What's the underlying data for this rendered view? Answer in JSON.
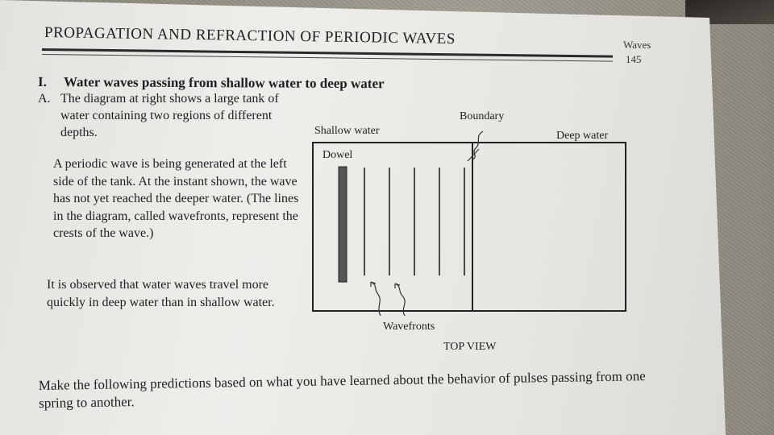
{
  "header": {
    "title": "PROPAGATION AND REFRACTION OF PERIODIC WAVES",
    "corner_label": "Waves",
    "page_number": "145"
  },
  "section": {
    "number": "I.",
    "title": "Water waves passing from shallow water to deep water"
  },
  "part_a": {
    "letter": "A.",
    "text": "The diagram at right shows a large tank of water containing two regions of different depths."
  },
  "paragraphs": {
    "wave_generated": "A periodic wave is being generated at the left side of the tank. At the instant shown, the wave has not yet reached the deeper water. (The lines in the diagram, called wavefronts, represent the crests of the wave.)",
    "observed": "It is observed that water waves travel more quickly in deep water than in shallow water."
  },
  "diagram": {
    "label_boundary": "Boundary",
    "label_shallow": "Shallow water",
    "label_deep": "Deep water",
    "label_dowel": "Dowel",
    "label_wavefronts": "Wavefronts",
    "caption": "TOP VIEW",
    "wavefront_count": 5
  },
  "bottom": {
    "instruction": "Make the following predictions based on what you have learned about the behavior of pulses passing from one spring to another."
  }
}
